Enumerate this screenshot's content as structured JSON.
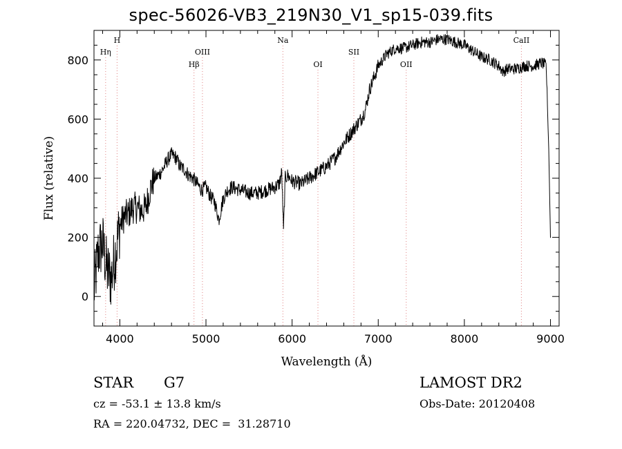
{
  "chart_data": {
    "type": "line",
    "title": "spec-56026-VB3_219N30_V1_sp15-039.fits",
    "xlabel": "Wavelength (Å)",
    "ylabel": "Flux (relative)",
    "xlim": [
      3700,
      9100
    ],
    "ylim": [
      -100,
      900
    ],
    "xticks": [
      4000,
      5000,
      6000,
      7000,
      8000,
      9000
    ],
    "xtick_labels": [
      "4000",
      "5000",
      "6000",
      "7000",
      "8000",
      "9000"
    ],
    "yticks": [
      0,
      200,
      400,
      600,
      800
    ],
    "ytick_labels": [
      "0",
      "200",
      "400",
      "600",
      "800"
    ],
    "grid": false,
    "line_color": "#000000",
    "marker_color": "#e08080",
    "spectrum": {
      "wavelength": [
        3700,
        3750,
        3800,
        3850,
        3900,
        3950,
        4000,
        4050,
        4100,
        4150,
        4200,
        4250,
        4300,
        4350,
        4400,
        4450,
        4500,
        4550,
        4600,
        4650,
        4700,
        4750,
        4800,
        4850,
        4900,
        4950,
        5000,
        5050,
        5100,
        5150,
        5200,
        5250,
        5300,
        5400,
        5500,
        5600,
        5700,
        5800,
        5850,
        5880,
        5900,
        5920,
        5950,
        6000,
        6100,
        6200,
        6300,
        6400,
        6500,
        6600,
        6700,
        6800,
        6850,
        6900,
        7000,
        7100,
        7200,
        7300,
        7400,
        7500,
        7600,
        7700,
        7800,
        7900,
        8000,
        8100,
        8200,
        8300,
        8400,
        8450,
        8500,
        8600,
        8700,
        8800,
        8900,
        8950,
        8980,
        9000
      ],
      "flux": [
        20,
        150,
        180,
        90,
        60,
        150,
        240,
        270,
        280,
        300,
        300,
        290,
        300,
        360,
        400,
        410,
        430,
        460,
        480,
        470,
        440,
        430,
        410,
        400,
        380,
        360,
        370,
        340,
        320,
        260,
        330,
        360,
        370,
        360,
        350,
        350,
        360,
        370,
        380,
        420,
        220,
        400,
        410,
        390,
        380,
        400,
        420,
        440,
        470,
        520,
        560,
        600,
        630,
        700,
        780,
        820,
        840,
        840,
        850,
        860,
        860,
        870,
        870,
        860,
        850,
        830,
        810,
        800,
        780,
        760,
        770,
        770,
        780,
        780,
        790,
        780,
        500,
        200
      ]
    },
    "line_markers": [
      {
        "label": "H",
        "x": 3968,
        "row": 1
      },
      {
        "label": "Hη",
        "x": 3835,
        "row": 2
      },
      {
        "label": "OIII",
        "x": 4959,
        "row": 2
      },
      {
        "label": "Hβ",
        "x": 4861,
        "row": 3
      },
      {
        "label": "Na",
        "x": 5893,
        "row": 1
      },
      {
        "label": "OI",
        "x": 6300,
        "row": 3
      },
      {
        "label": "SII",
        "x": 6717,
        "row": 2
      },
      {
        "label": "OII",
        "x": 7325,
        "row": 3
      },
      {
        "label": "CaII",
        "x": 8662,
        "row": 1
      }
    ]
  },
  "info": {
    "object_class": "STAR",
    "subclass": "G7",
    "survey": "LAMOST DR2",
    "redshift": "cz = -53.1 ± 13.8 km/s",
    "obs_date": "Obs-Date: 20120408",
    "coords": "RA = 220.04732, DEC =  31.28710"
  }
}
